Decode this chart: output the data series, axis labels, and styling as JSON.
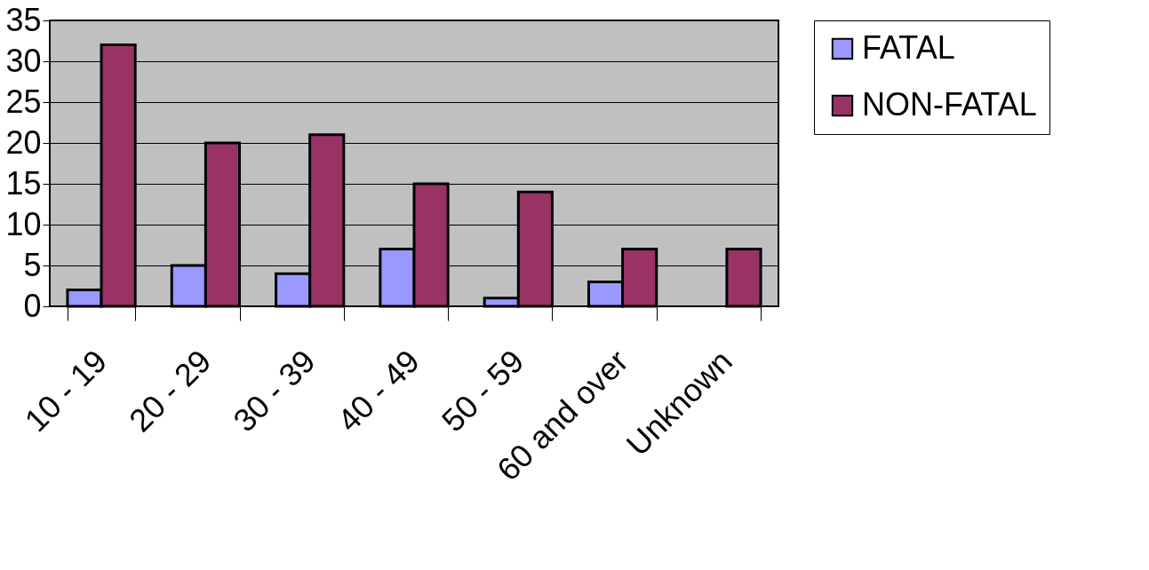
{
  "chart_data": {
    "type": "bar",
    "categories": [
      "10 - 19",
      "20 - 29",
      "30 - 39",
      "40 - 49",
      "50 - 59",
      "60 and over",
      "Unknown"
    ],
    "series": [
      {
        "name": "FATAL",
        "color": "#9999ff",
        "values": [
          2,
          5,
          4,
          7,
          1,
          3,
          null
        ]
      },
      {
        "name": "NON-FATAL",
        "color": "#993366",
        "values": [
          32,
          20,
          21,
          15,
          14,
          7,
          7
        ]
      }
    ],
    "ylim": [
      0,
      35
    ],
    "yticks": [
      0,
      5,
      10,
      15,
      20,
      25,
      30,
      35
    ],
    "grid": "y",
    "legend": "right"
  }
}
